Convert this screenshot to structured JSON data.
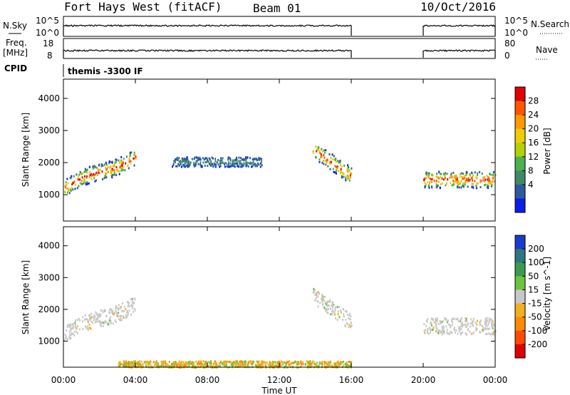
{
  "header": {
    "title": "Fort Hays West (fitACF)",
    "beam": "Beam 01",
    "date": "10/Oct/2016"
  },
  "side_labels": {
    "nsky": "N.Sky",
    "freq_line1": "Freq.",
    "freq_line2": "[MHz]",
    "cpid": "CPID",
    "nsearch": "N.Search",
    "nave": "Nave"
  },
  "axes": {
    "nsky_ticks": [
      "10^5",
      "10^0"
    ],
    "nsearch_ticks": [
      "10^5",
      "10^0"
    ],
    "freq_ticks": [
      "18",
      "8"
    ],
    "nave_ticks": [
      "80",
      "0"
    ],
    "range_ylabel": "Slant Range [km]",
    "range_ticks": [
      "4000",
      "3000",
      "2000",
      "1000"
    ],
    "xlabel": "Time UT",
    "time_ticks": [
      "00:00",
      "04:00",
      "08:00",
      "12:00",
      "16:00",
      "20:00",
      "00:00"
    ]
  },
  "cpid_text": "themis -3300 IF",
  "power_scale": {
    "label": "Power [dB]",
    "ticks": [
      "28",
      "24",
      "20",
      "16",
      "12",
      "8",
      "4"
    ],
    "colors": [
      "#e00000",
      "#ff5500",
      "#ff9900",
      "#f0cc00",
      "#b4d000",
      "#4cb050",
      "#3f8a64",
      "#2c5aa0",
      "#0a1ee6"
    ]
  },
  "velocity_scale": {
    "label": "Velocity [m s^-1]",
    "ticks": [
      "200",
      "100",
      "50",
      "15",
      "-15",
      "-50",
      "-100",
      "-200"
    ],
    "colors": [
      "#1a3cc8",
      "#2d7880",
      "#3c9a50",
      "#6cc43c",
      "#c8c8c8",
      "#f0b020",
      "#ff8a00",
      "#ff4a00",
      "#e00000"
    ]
  },
  "chart_data": [
    {
      "type": "heatmap",
      "title": "Power",
      "xlabel": "Time UT",
      "ylabel": "Slant Range [km]",
      "xlim": [
        "00:00",
        "24:00"
      ],
      "ylim": [
        180,
        4600
      ],
      "colorbar": {
        "label": "Power [dB]",
        "range": [
          0,
          30
        ]
      },
      "echo_regions": [
        {
          "t_start": "00:00",
          "t_end": "04:00",
          "range_start_km": 1050,
          "range_end_km": 2400,
          "typical_power_db": [
            8,
            28
          ]
        },
        {
          "t_start": "13:50",
          "t_end": "16:00",
          "range_start_km": 1450,
          "range_end_km": 2700,
          "typical_power_db": [
            8,
            24
          ]
        },
        {
          "t_start": "20:00",
          "t_end": "24:00",
          "range_start_km": 1050,
          "range_end_km": 1950,
          "typical_power_db": [
            8,
            28
          ]
        },
        {
          "t_start": "06:00",
          "t_end": "11:00",
          "range_start_km": 1900,
          "range_end_km": 2200,
          "typical_power_db": [
            8,
            12
          ]
        }
      ],
      "data_gap": [
        "16:00",
        "20:00"
      ]
    },
    {
      "type": "heatmap",
      "title": "Velocity",
      "xlabel": "Time UT",
      "ylabel": "Slant Range [km]",
      "xlim": [
        "00:00",
        "24:00"
      ],
      "ylim": [
        180,
        4600
      ],
      "colorbar": {
        "label": "Velocity [m s^-1]",
        "range": [
          -250,
          250
        ]
      },
      "echo_regions": [
        {
          "t_start": "00:00",
          "t_end": "04:00",
          "range_start_km": 1050,
          "range_end_km": 2400,
          "typical_velocity": [
            -15,
            15
          ]
        },
        {
          "t_start": "13:50",
          "t_end": "16:00",
          "range_start_km": 1450,
          "range_end_km": 2700,
          "typical_velocity": [
            -15,
            50
          ]
        },
        {
          "t_start": "20:00",
          "t_end": "24:00",
          "range_start_km": 1050,
          "range_end_km": 1950,
          "typical_velocity": [
            -15,
            15
          ]
        },
        {
          "t_start": "03:00",
          "t_end": "16:00",
          "range_start_km": 200,
          "range_end_km": 400,
          "typical_velocity": [
            -100,
            50
          ]
        }
      ],
      "data_gap": [
        "16:00",
        "20:00"
      ]
    }
  ]
}
